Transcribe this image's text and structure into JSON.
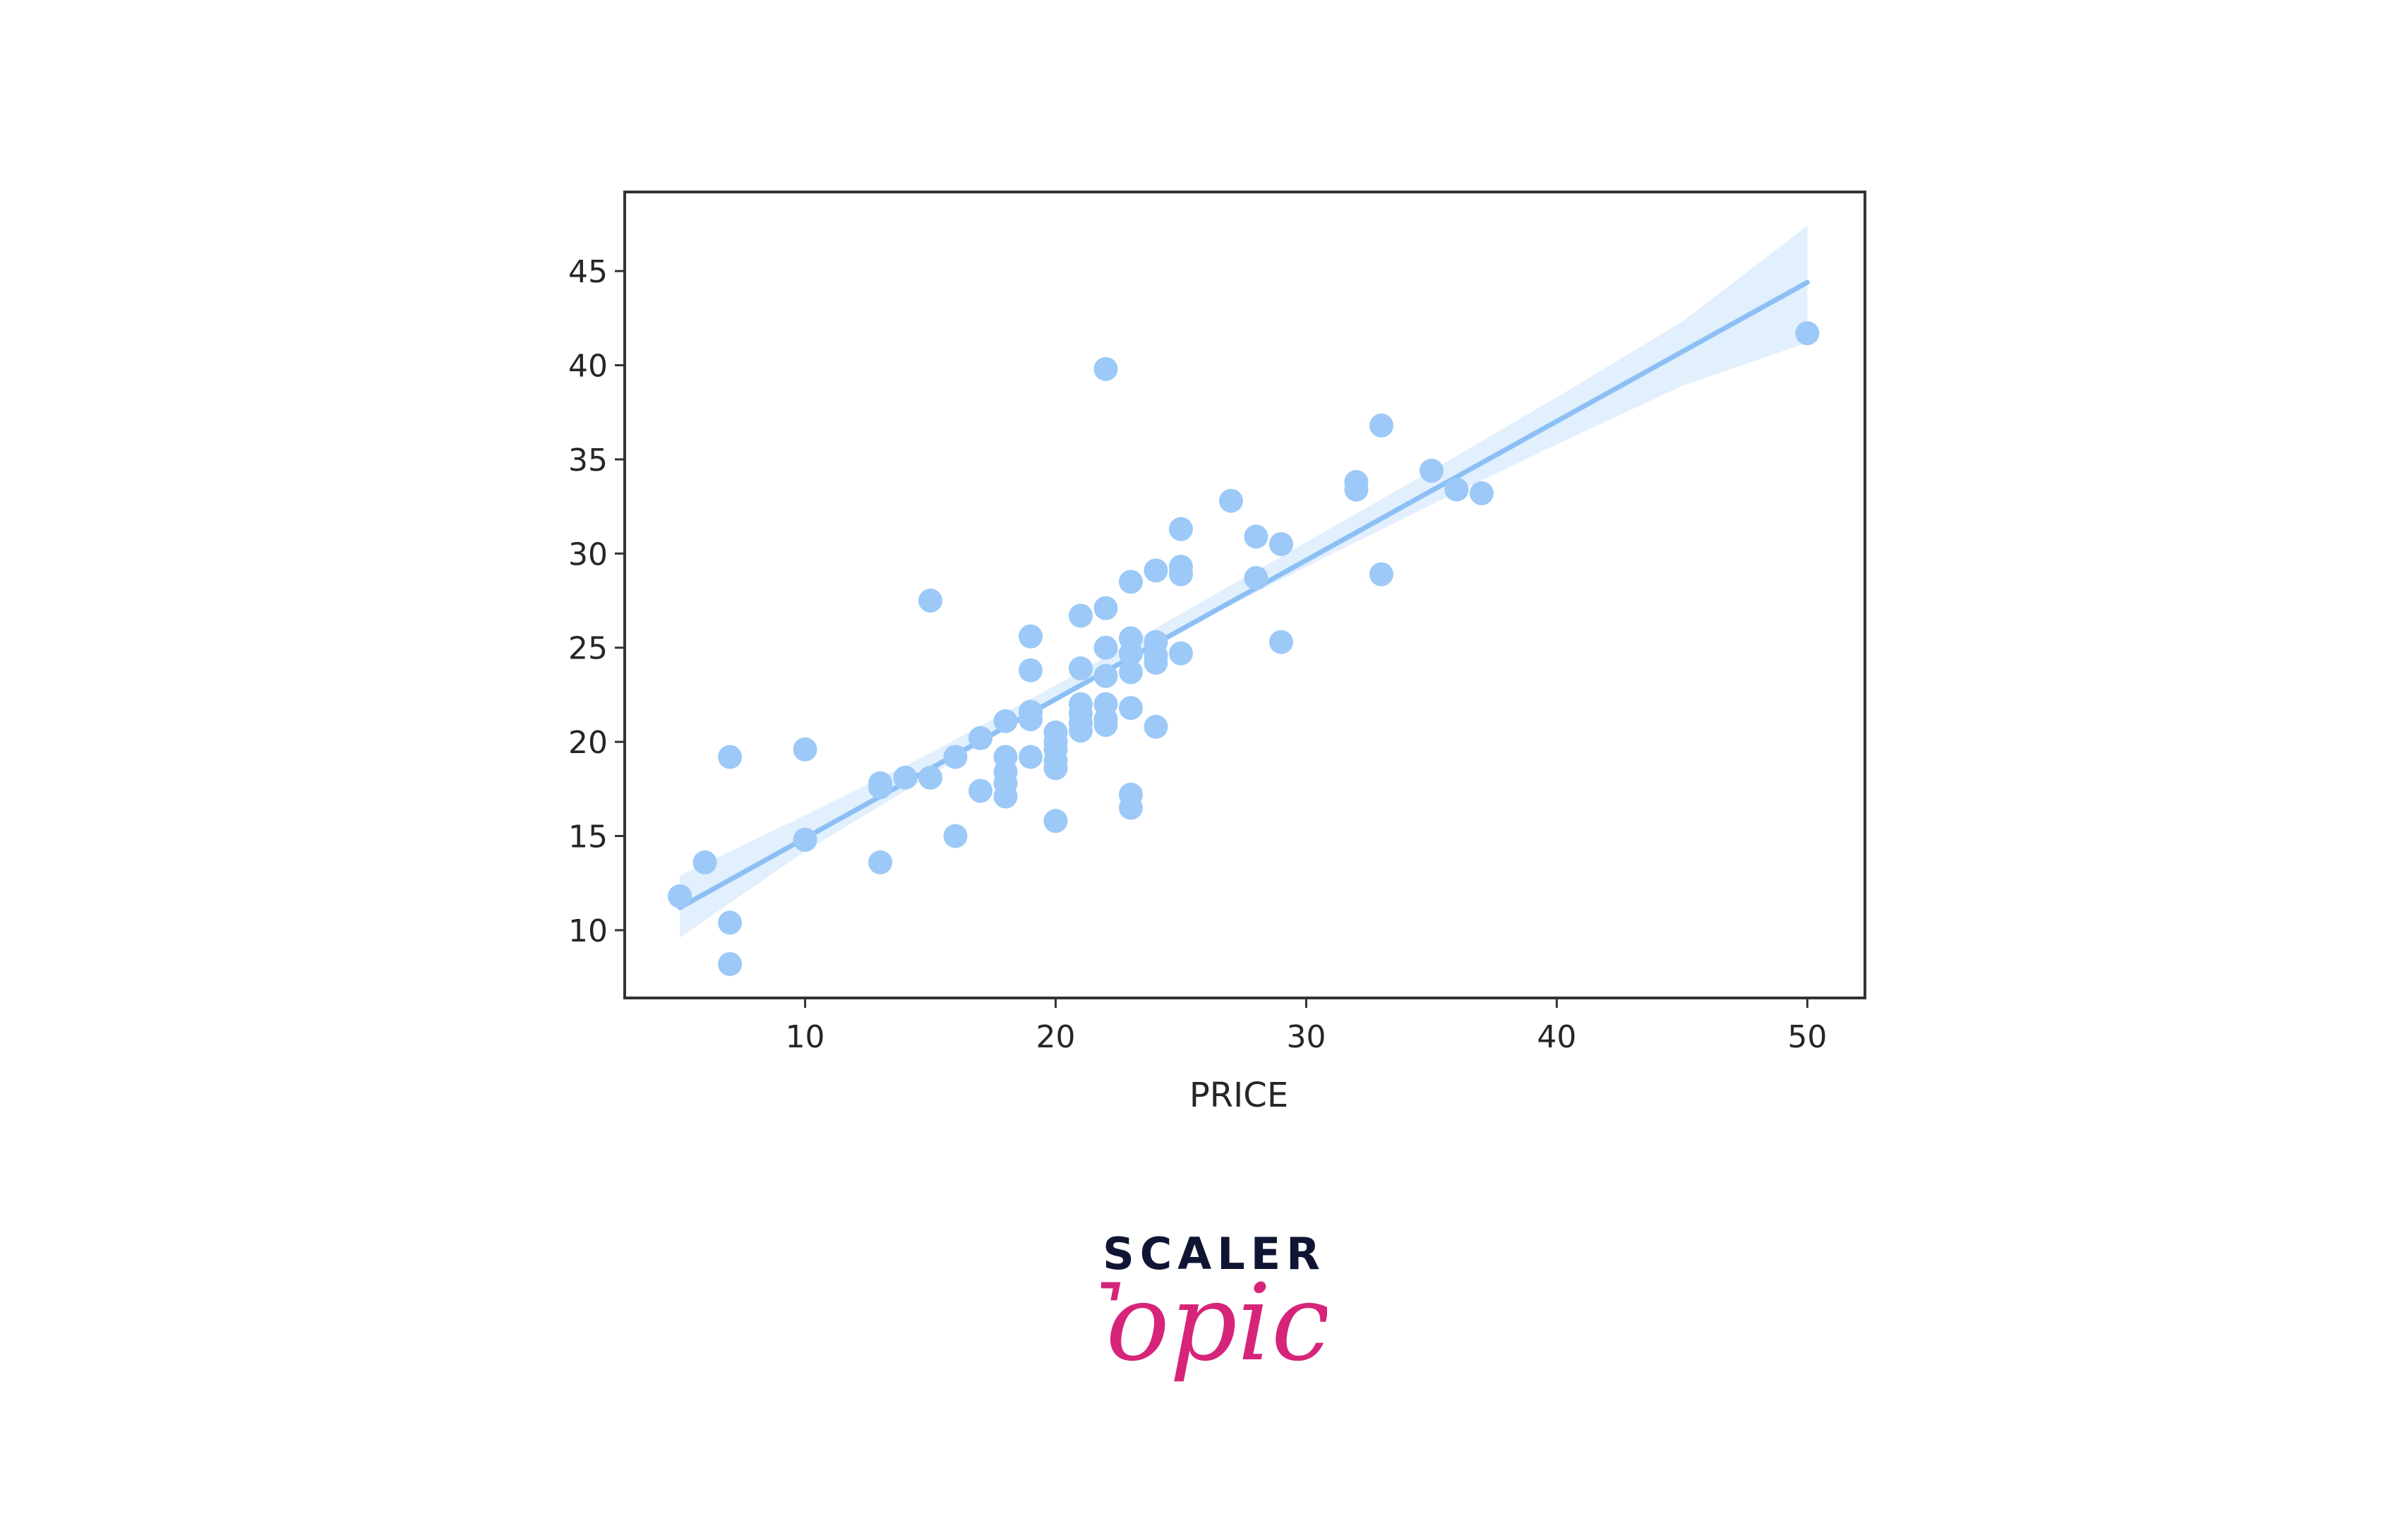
{
  "chart_data": {
    "type": "scatter",
    "title": "",
    "xlabel": "PRICE",
    "ylabel": "",
    "xlim": [
      2.8,
      52.3
    ],
    "ylim": [
      6.4,
      49.2
    ],
    "xticks": [
      10,
      20,
      30,
      40,
      50
    ],
    "yticks": [
      10,
      15,
      20,
      25,
      30,
      35,
      40,
      45
    ],
    "grid": false,
    "legend": "none",
    "colors": {
      "points": "#9cc9f7",
      "line": "#8cc0f5",
      "band": "#cfe5fb",
      "axes": "#333333"
    },
    "series": [
      {
        "points": [
          [
            5,
            11.8
          ],
          [
            6,
            13.6
          ],
          [
            7,
            19.2
          ],
          [
            7,
            10.4
          ],
          [
            7,
            8.2
          ],
          [
            10,
            19.6
          ],
          [
            10,
            14.8
          ],
          [
            13,
            17.6
          ],
          [
            13,
            17.8
          ],
          [
            13,
            13.6
          ],
          [
            14,
            18.1
          ],
          [
            15,
            18.1
          ],
          [
            15,
            27.5
          ],
          [
            16,
            19.2
          ],
          [
            16,
            15
          ],
          [
            17,
            20.2
          ],
          [
            17,
            17.4
          ],
          [
            18,
            21.1
          ],
          [
            18,
            19.2
          ],
          [
            18,
            18.4
          ],
          [
            18,
            17.8
          ],
          [
            18,
            17.1
          ],
          [
            19,
            25.6
          ],
          [
            19,
            23.8
          ],
          [
            19,
            21.6
          ],
          [
            19,
            21.2
          ],
          [
            19,
            19.2
          ],
          [
            20,
            20.5
          ],
          [
            20,
            20
          ],
          [
            20,
            19.6
          ],
          [
            20,
            19
          ],
          [
            20,
            18.6
          ],
          [
            20,
            15.8
          ],
          [
            21,
            26.7
          ],
          [
            21,
            23.9
          ],
          [
            21,
            22
          ],
          [
            21,
            21.5
          ],
          [
            21,
            21
          ],
          [
            21,
            20.6
          ],
          [
            22,
            39.8
          ],
          [
            22,
            27.1
          ],
          [
            22,
            25
          ],
          [
            22,
            23.5
          ],
          [
            22,
            22
          ],
          [
            22,
            21.2
          ],
          [
            22,
            20.9
          ],
          [
            23,
            28.5
          ],
          [
            23,
            25.5
          ],
          [
            23,
            24.7
          ],
          [
            23,
            23.7
          ],
          [
            23,
            21.8
          ],
          [
            23,
            17.2
          ],
          [
            23,
            16.5
          ],
          [
            24,
            29.1
          ],
          [
            24,
            25.3
          ],
          [
            24,
            24.6
          ],
          [
            24,
            24.2
          ],
          [
            24,
            20.8
          ],
          [
            25,
            31.3
          ],
          [
            25,
            29.3
          ],
          [
            25,
            28.9
          ],
          [
            25,
            24.7
          ],
          [
            27,
            32.8
          ],
          [
            28,
            30.9
          ],
          [
            28,
            28.7
          ],
          [
            29,
            30.5
          ],
          [
            29,
            25.3
          ],
          [
            32,
            33.8
          ],
          [
            32,
            33.4
          ],
          [
            33,
            36.8
          ],
          [
            33,
            28.9
          ],
          [
            35,
            34.4
          ],
          [
            36,
            33.4
          ],
          [
            37,
            33.2
          ],
          [
            50,
            41.7
          ]
        ]
      }
    ],
    "regression": {
      "x": [
        5,
        50
      ],
      "y": [
        11.2,
        44.4
      ]
    },
    "confidence_band": {
      "x": [
        5,
        10,
        15,
        20,
        25,
        30,
        35,
        40,
        45,
        50
      ],
      "lower": [
        9.6,
        14.2,
        18.2,
        22.3,
        25.9,
        29.3,
        32.6,
        35.8,
        38.9,
        41.2
      ],
      "upper": [
        12.9,
        16.1,
        19.4,
        23.0,
        26.8,
        30.6,
        34.4,
        38.3,
        42.3,
        47.4
      ]
    }
  },
  "logo": {
    "top_text": "SCALER",
    "bottom_text": "Topics"
  }
}
